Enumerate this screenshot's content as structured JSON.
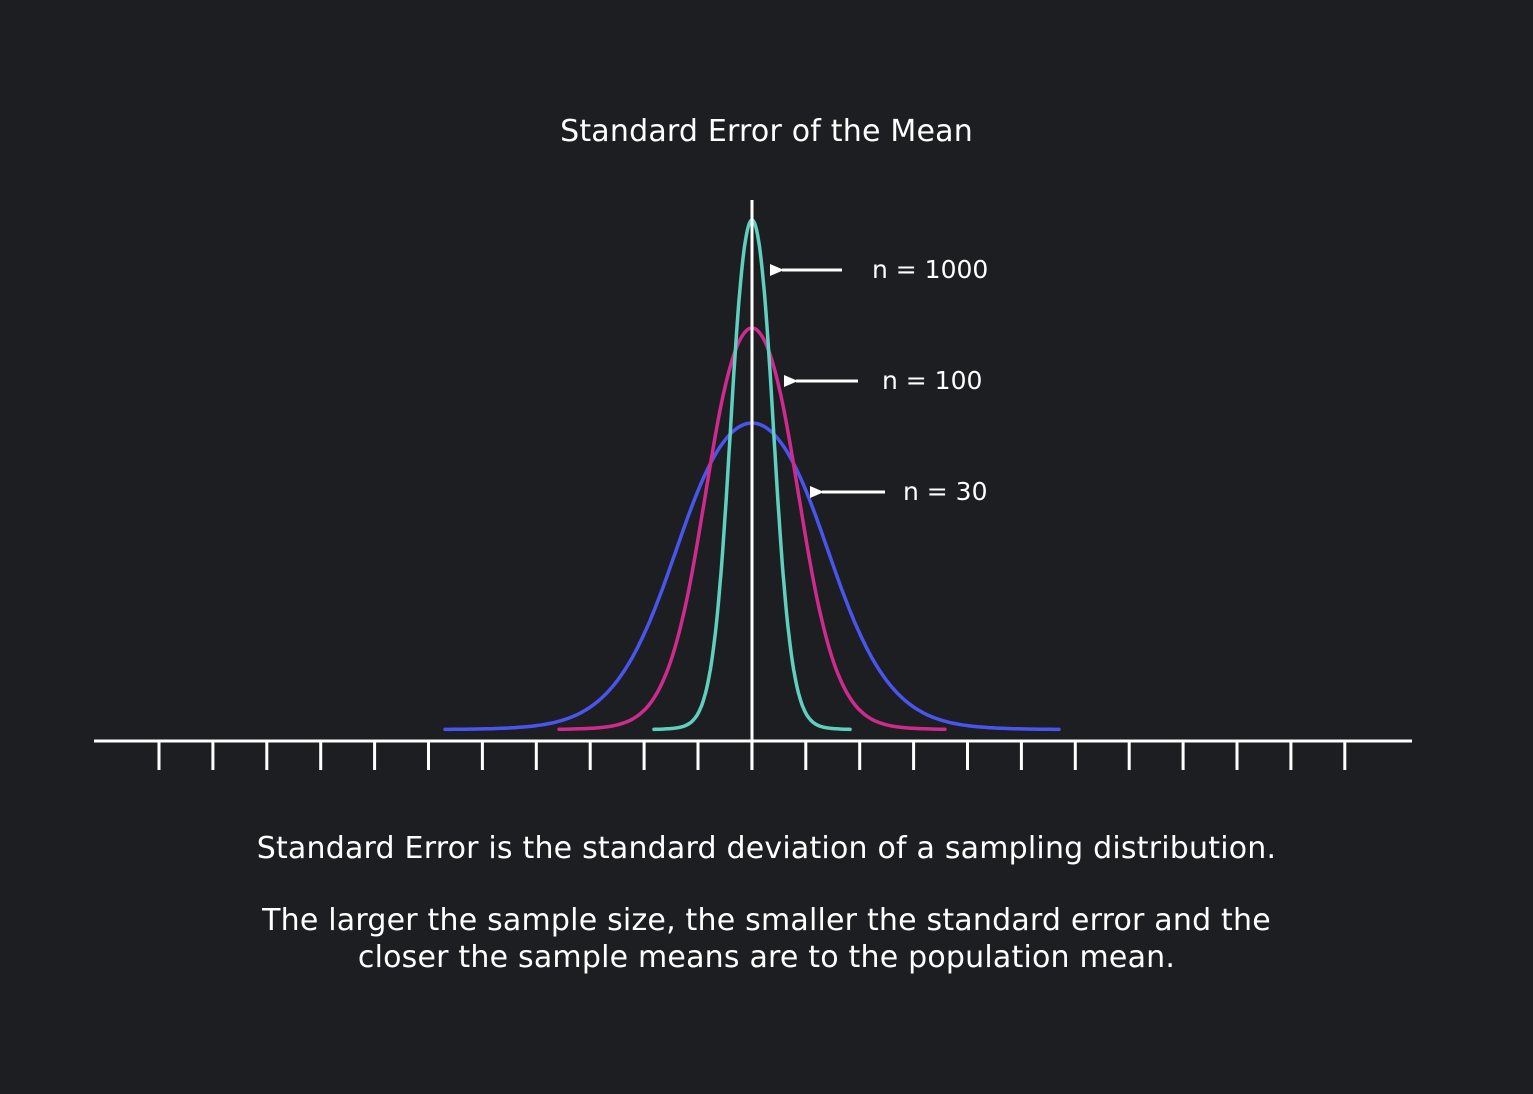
{
  "title": "Standard Error of the Mean",
  "curves": [
    {
      "label": "n = 1000",
      "color": "#5fcfbf"
    },
    {
      "label": "n = 100",
      "color": "#cf2b8f"
    },
    {
      "label": "n = 30",
      "color": "#4a55ee"
    }
  ],
  "description": {
    "line1": "Standard Error is the standard deviation of a sampling distribution.",
    "line2a": "The larger the sample size, the smaller the standard error and the",
    "line2b": "closer the sample means are to the population mean."
  },
  "colors": {
    "background": "#1d1e22",
    "axis": "#ffffff",
    "text": "#ffffff"
  }
}
